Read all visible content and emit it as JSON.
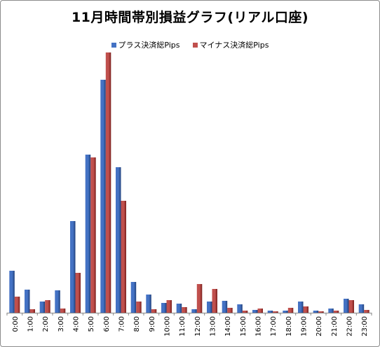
{
  "chart_data": {
    "type": "bar",
    "title": "11月時間帯別損益グラフ(リアル口座)",
    "categories": [
      "0:00",
      "1:00",
      "2:00",
      "3:00",
      "4:00",
      "5:00",
      "6:00",
      "7:00",
      "8:00",
      "9:00",
      "10:00",
      "11:00",
      "12:00",
      "13:00",
      "14:00",
      "15:00",
      "16:00",
      "17:00",
      "18:00",
      "19:00",
      "20:00",
      "21:00",
      "22:00",
      "23:00"
    ],
    "series": [
      {
        "name": "プラス決済総Pips",
        "color": "#4472c4",
        "dark": "#1f3f7a",
        "values": [
          60,
          33,
          16,
          32,
          131,
          226,
          333,
          208,
          44,
          26,
          14,
          13,
          5,
          16,
          17,
          12,
          4,
          3,
          3,
          16,
          3,
          6,
          20,
          12
        ]
      },
      {
        "name": "マイナス決済総Pips",
        "color": "#c0504d",
        "dark": "#7a1f1c",
        "values": [
          23,
          5,
          18,
          6,
          57,
          222,
          372,
          160,
          16,
          5,
          18,
          8,
          41,
          34,
          7,
          3,
          6,
          2,
          7,
          9,
          2,
          3,
          18,
          4
        ]
      }
    ],
    "ylim": [
      0,
      372
    ],
    "grid": false,
    "legend_position": "top"
  }
}
